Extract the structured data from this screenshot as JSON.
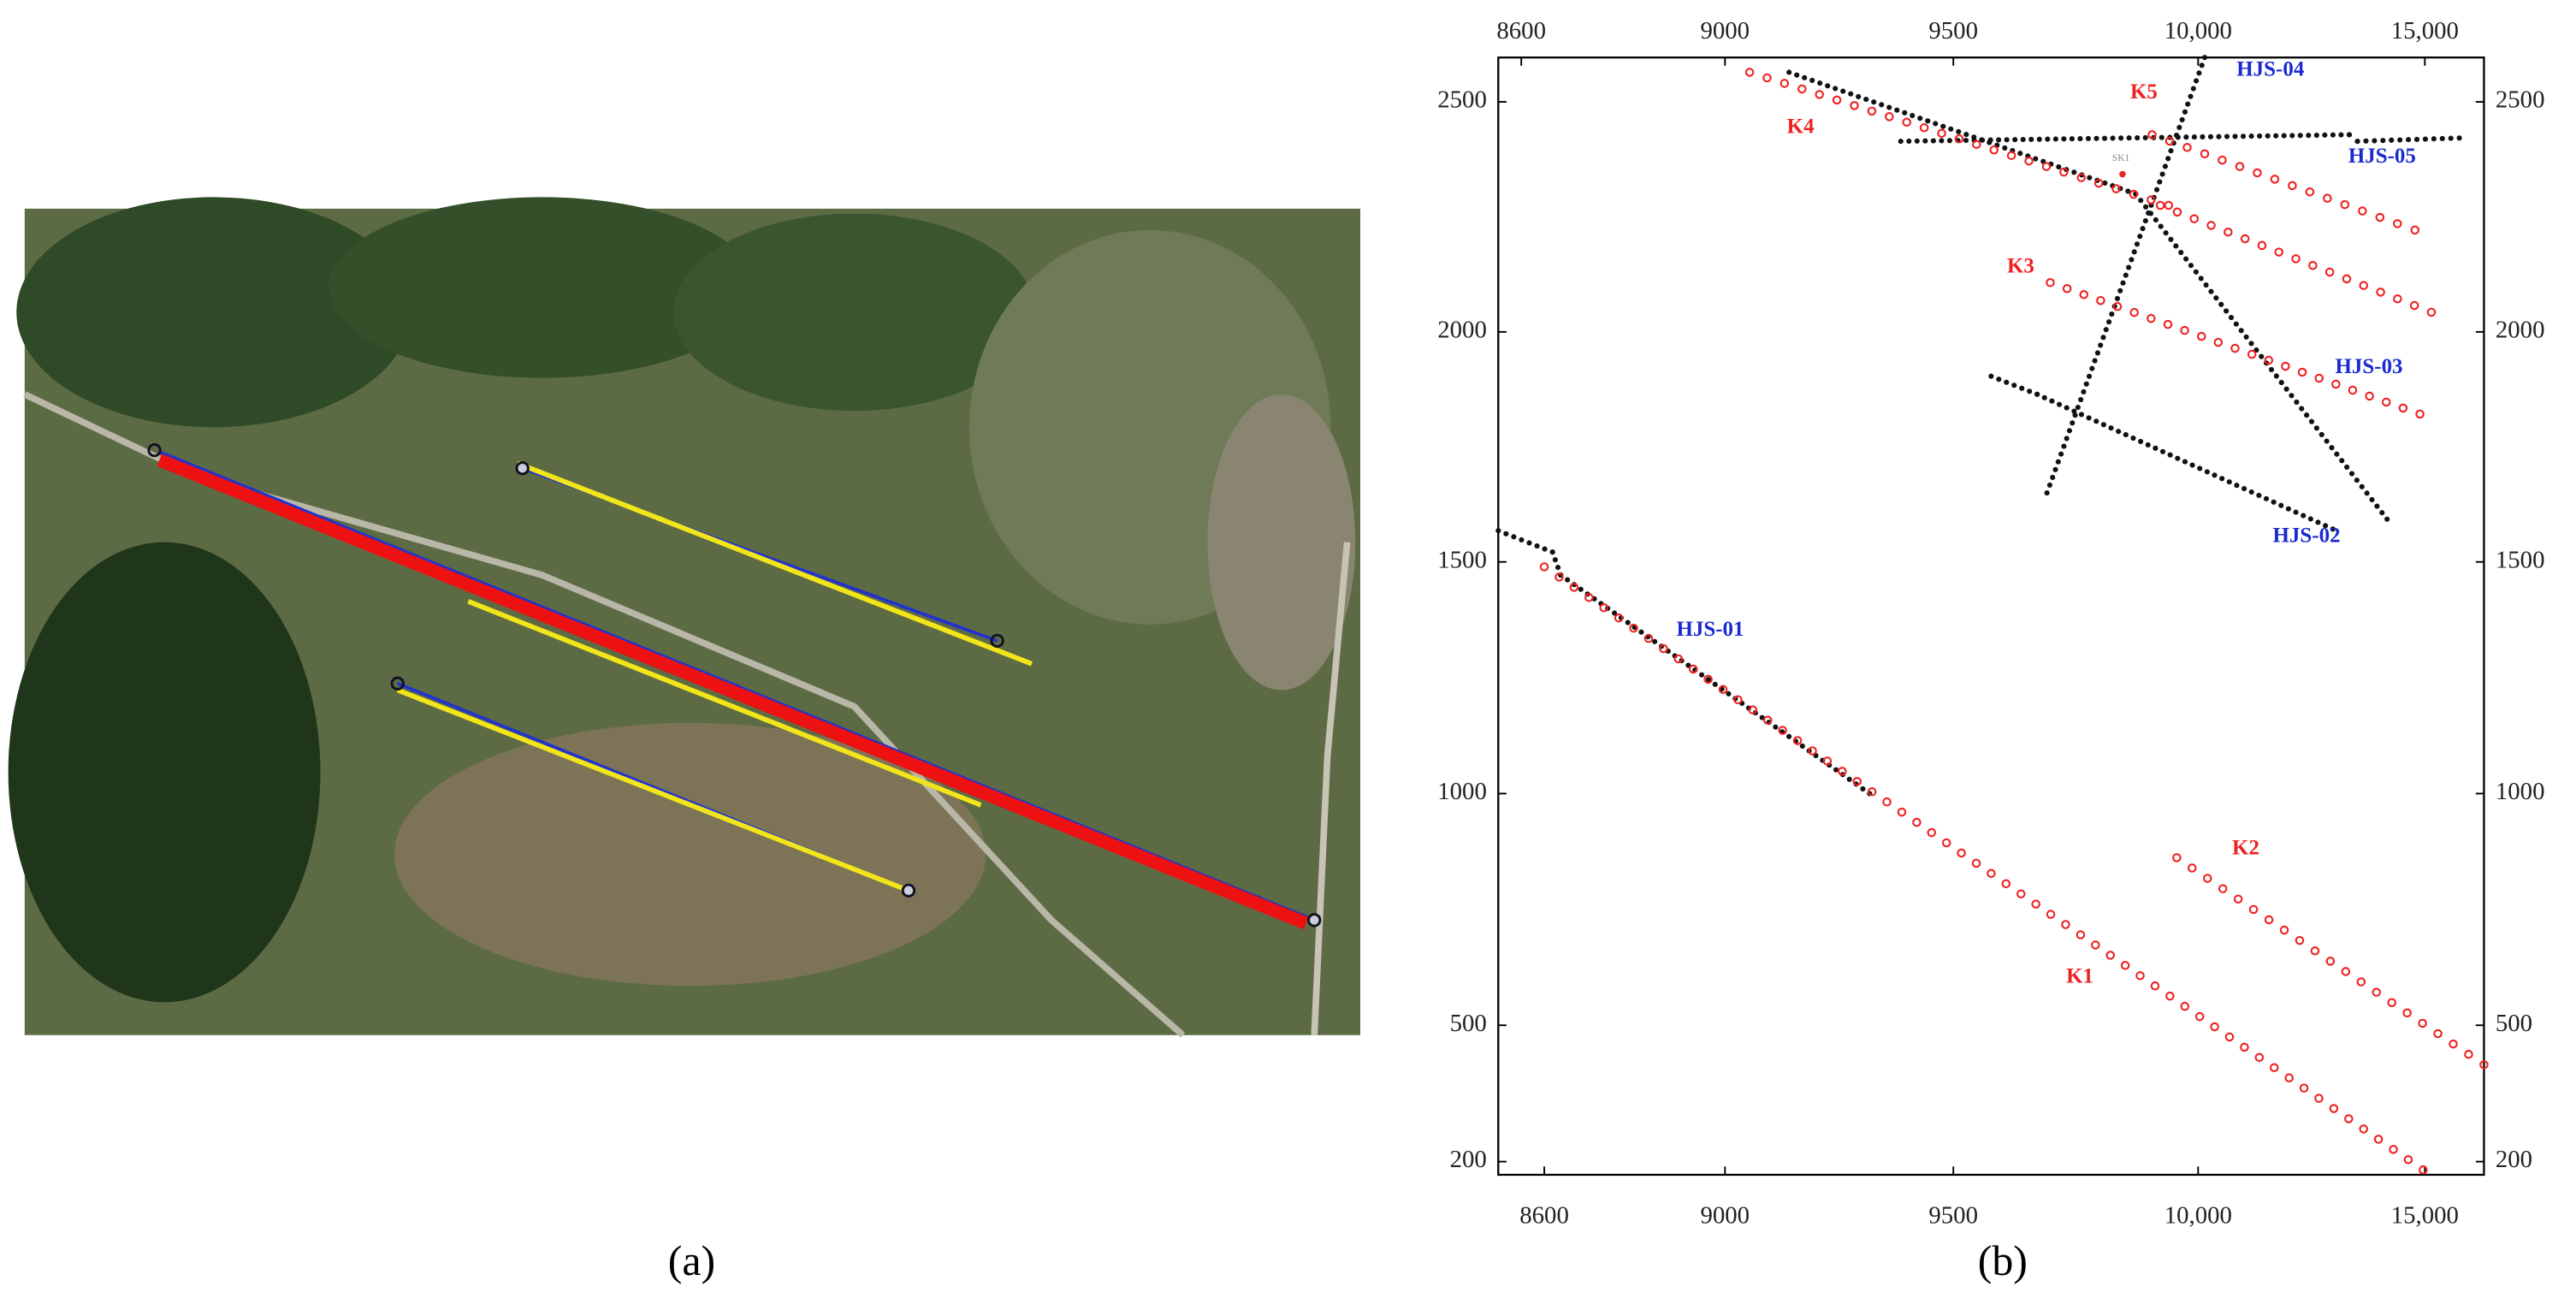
{
  "panel_a": {
    "caption": "(a)"
  },
  "panel_b": {
    "caption": "(b)",
    "x_ticks_top": [
      "8600",
      "9000",
      "9500",
      "10,000",
      "15,000"
    ],
    "x_ticks_bottom": [
      "8600",
      "9000",
      "9500",
      "10,000",
      "15,000"
    ],
    "y_ticks_left": [
      "2500",
      "2000",
      "1500",
      "1000",
      "500",
      "200"
    ],
    "y_ticks_right": [
      "2500",
      "2000",
      "1500",
      "1000",
      "500",
      "200"
    ],
    "profile_labels": [
      "K1",
      "K2",
      "K3",
      "K4",
      "K5"
    ],
    "line_labels": [
      "HJS-01",
      "HJS-02",
      "HJS-03",
      "HJS-04",
      "HJS-05"
    ],
    "borehole_label": "SK1"
  }
}
